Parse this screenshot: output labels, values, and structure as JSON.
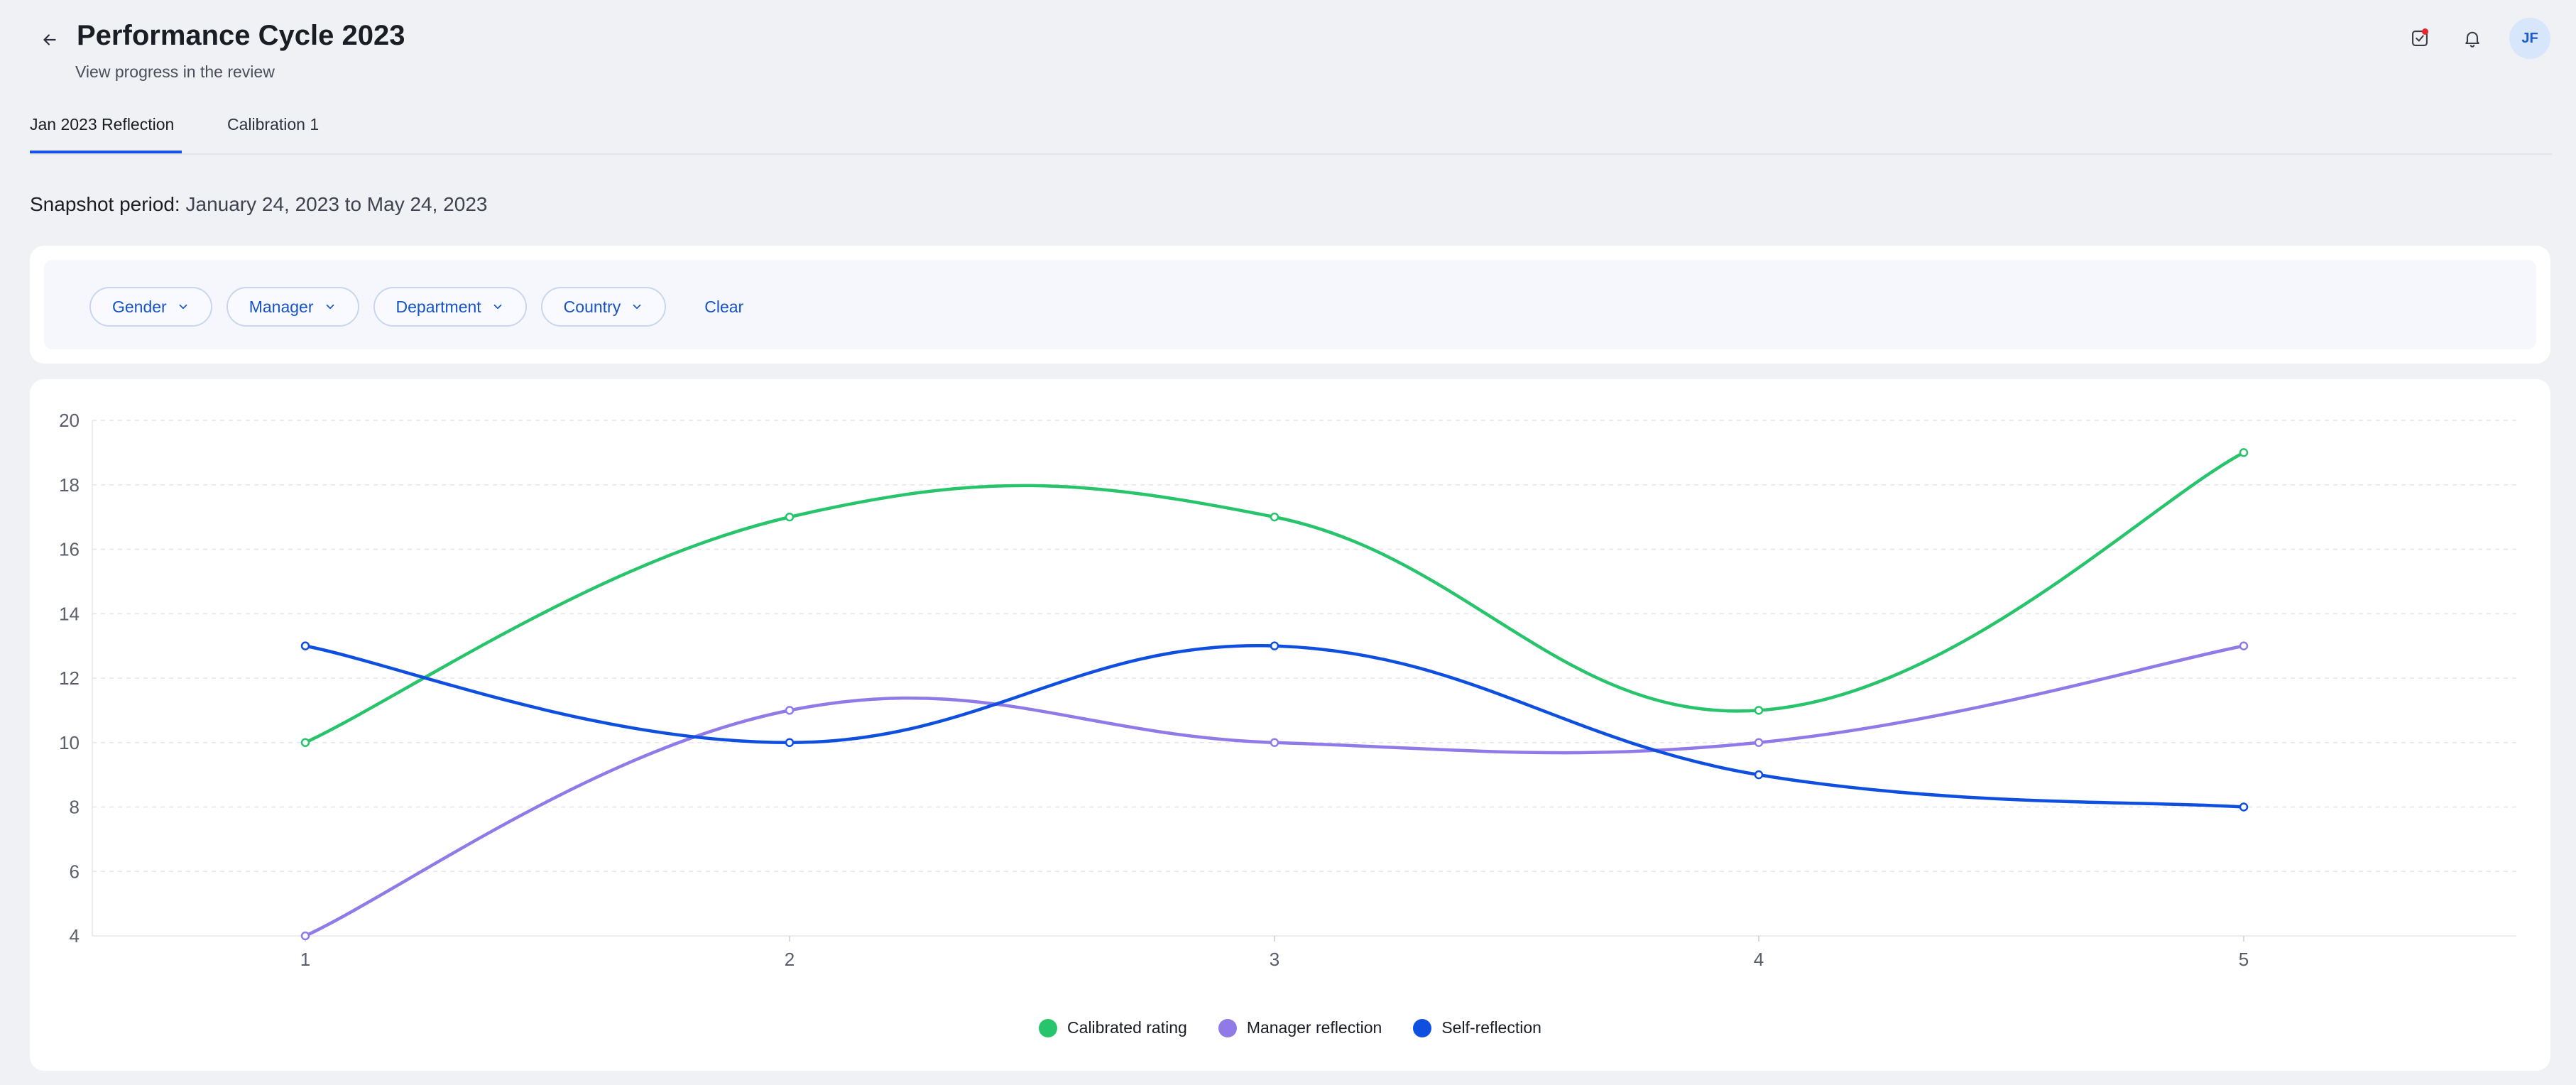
{
  "header": {
    "title": "Performance Cycle 2023",
    "subtitle": "View progress in the review",
    "back_icon": "arrow-left-icon",
    "actions": [
      {
        "name": "tasks-icon",
        "has_badge": true
      },
      {
        "name": "bell-icon",
        "has_badge": false
      }
    ],
    "avatar_initials": "JF"
  },
  "tabs": [
    {
      "label": "Jan 2023 Reflection",
      "active": true
    },
    {
      "label": "Calibration 1",
      "active": false
    }
  ],
  "snapshot": {
    "label": "Snapshot period:",
    "value": "January 24, 2023 to May 24, 2023"
  },
  "filters": {
    "items": [
      {
        "label": "Gender"
      },
      {
        "label": "Manager"
      },
      {
        "label": "Department"
      },
      {
        "label": "Country"
      }
    ],
    "clear_label": "Clear"
  },
  "colors": {
    "accent": "#1652e6",
    "calibrated": "#27c46b",
    "manager": "#8f7ae8",
    "self": "#0e4fe0"
  },
  "chart_data": {
    "type": "line",
    "title": "",
    "xlabel": "",
    "ylabel": "",
    "x": [
      1,
      2,
      3,
      4,
      5
    ],
    "ylim": [
      4,
      20
    ],
    "yticks": [
      4,
      6,
      8,
      10,
      12,
      14,
      16,
      18,
      20
    ],
    "grid": true,
    "smooth": true,
    "legend_position": "bottom-center",
    "series": [
      {
        "name": "Calibrated rating",
        "color": "#27c46b",
        "values": [
          10,
          17,
          17,
          11,
          19
        ]
      },
      {
        "name": "Manager reflection",
        "color": "#8f7ae8",
        "values": [
          4,
          11,
          10,
          10,
          13
        ]
      },
      {
        "name": "Self-reflection",
        "color": "#0e4fe0",
        "values": [
          13,
          10,
          13,
          9,
          8
        ]
      }
    ]
  }
}
